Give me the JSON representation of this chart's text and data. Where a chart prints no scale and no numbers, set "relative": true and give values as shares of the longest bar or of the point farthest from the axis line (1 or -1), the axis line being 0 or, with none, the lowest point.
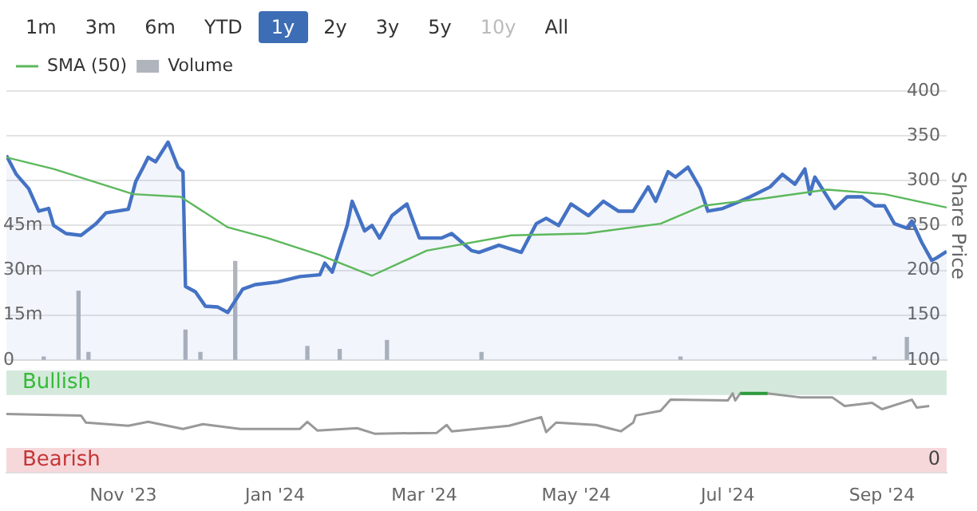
{
  "chart_data": [
    {
      "type": "area",
      "ylabel": "Share Price",
      "annotations": [
        "1m",
        "3m",
        "6m",
        "YTD",
        "1y",
        "2y",
        "3y",
        "5y",
        "10y",
        "All"
      ],
      "xlim": [
        "2023-09-15",
        "2024-09-27"
      ],
      "ylim": [
        100,
        400
      ],
      "yticks": [
        100,
        150,
        200,
        250,
        300,
        350,
        400
      ],
      "y2lim": [
        0,
        90
      ],
      "y2ticks": [
        0,
        {
          "value": 15,
          "label": "15m"
        },
        {
          "value": 30,
          "label": "30m"
        },
        {
          "value": 45,
          "label": "45m"
        }
      ],
      "grid": "y",
      "legend": "top left",
      "tick_labels": "y",
      "series": [
        {
          "color": "#4472c4",
          "x": [
            "2023-09-15",
            "2023-09-19",
            "2023-09-24",
            "2023-09-28",
            "2023-10-02",
            "2023-10-04",
            "2023-10-09",
            "2023-10-15",
            "2023-10-21",
            "2023-10-25",
            "2023-11-03",
            "2023-11-06",
            "2023-11-09",
            "2023-11-11",
            "2023-11-14",
            "2023-11-19",
            "2023-11-23",
            "2023-11-25",
            "2023-11-26",
            "2023-11-30",
            "2023-12-04",
            "2023-12-09",
            "2023-12-13",
            "2023-12-19",
            "2023-12-24",
            "2024-01-02",
            "2024-01-11",
            "2024-01-19",
            "2024-01-21",
            "2024-01-24",
            "2024-01-30",
            "2024-02-01",
            "2024-02-06",
            "2024-02-09",
            "2024-02-12",
            "2024-02-17",
            "2024-02-23",
            "2024-02-28",
            "2024-03-08",
            "2024-03-12",
            "2024-03-20",
            "2024-03-23",
            "2024-03-31",
            "2024-04-09",
            "2024-04-15",
            "2024-04-19",
            "2024-04-24",
            "2024-04-29",
            "2024-05-06",
            "2024-05-12",
            "2024-05-18",
            "2024-05-24",
            "2024-05-30",
            "2024-06-02",
            "2024-06-07",
            "2024-06-10",
            "2024-06-15",
            "2024-06-20",
            "2024-06-23",
            "2024-06-29",
            "2024-07-06",
            "2024-07-10",
            "2024-07-18",
            "2024-07-23",
            "2024-07-28",
            "2024-08-01",
            "2024-08-03",
            "2024-08-05",
            "2024-08-13",
            "2024-08-18",
            "2024-08-24",
            "2024-08-29",
            "2024-09-02",
            "2024-09-06",
            "2024-09-11",
            "2024-09-13",
            "2024-09-17",
            "2024-09-21",
            "2024-09-23",
            "2024-09-27"
          ],
          "values": [
            328,
            307,
            291,
            266,
            269,
            250,
            241,
            239,
            252,
            264,
            268,
            299,
            315,
            326,
            321,
            343,
            315,
            310,
            182,
            176,
            160,
            159,
            153,
            179,
            184,
            187,
            193,
            195,
            208,
            198,
            250,
            277,
            244,
            250,
            236,
            261,
            274,
            236,
            236,
            241,
            222,
            220,
            228,
            220,
            252,
            258,
            250,
            274,
            261,
            277,
            266,
            266,
            293,
            277,
            310,
            304,
            315,
            291,
            266,
            269,
            277,
            282,
            293,
            307,
            296,
            313,
            285,
            304,
            269,
            282,
            282,
            272,
            272,
            252,
            247,
            255,
            231,
            211,
            214,
            221
          ]
        },
        {
          "name": "SMA (50)",
          "type": "line",
          "color": "#5cb85c",
          "x": [
            "2023-09-15",
            "2023-10-04",
            "2023-11-05",
            "2023-11-24",
            "2023-12-13",
            "2023-12-29",
            "2024-01-19",
            "2024-02-09",
            "2024-03-02",
            "2024-04-05",
            "2024-05-05",
            "2024-06-04",
            "2024-06-21",
            "2024-07-15",
            "2024-08-10",
            "2024-09-02",
            "2024-09-27"
          ],
          "values": [
            326,
            313,
            285,
            282,
            248,
            236,
            217,
            194,
            222,
            239,
            241,
            252,
            272,
            280,
            290,
            285,
            270
          ]
        },
        {
          "name": "Volume",
          "type": "bar",
          "axis": "y2",
          "color": "#b0b4bc",
          "x": [
            "2023-09-30",
            "2023-10-14",
            "2023-10-18",
            "2023-11-26",
            "2023-12-02",
            "2023-12-16",
            "2024-01-14",
            "2024-01-27",
            "2024-02-15",
            "2024-03-24",
            "2024-06-12",
            "2024-08-29",
            "2024-09-11"
          ],
          "values": [
            1,
            23,
            2.5,
            10,
            2.5,
            33,
            4.5,
            3.5,
            6.5,
            2.5,
            1,
            1,
            7.5
          ]
        }
      ]
    },
    {
      "type": "line",
      "relative": true,
      "annotations": [
        "0"
      ],
      "x": [
        "2023-09-15",
        "2023-10-15",
        "2023-10-17",
        "2023-11-03",
        "2023-11-11",
        "2023-11-25",
        "2023-12-03",
        "2023-12-18",
        "2024-01-11",
        "2024-01-14",
        "2024-01-18",
        "2024-02-03",
        "2024-02-10",
        "2024-03-06",
        "2024-03-10",
        "2024-03-12",
        "2024-04-04",
        "2024-04-17",
        "2024-04-19",
        "2024-04-23",
        "2024-05-09",
        "2024-05-19",
        "2024-05-24",
        "2024-05-25",
        "2024-06-04",
        "2024-06-08",
        "2024-07-01",
        "2024-07-03",
        "2024-07-04",
        "2024-07-06",
        "2024-07-17",
        "2024-07-30",
        "2024-08-12",
        "2024-08-17",
        "2024-08-28",
        "2024-09-01",
        "2024-09-13",
        "2024-09-15",
        "2024-09-20"
      ],
      "xlim": [
        "2023-09-15",
        "2024-09-27"
      ],
      "xticks": [
        {
          "value": "2023-11-01",
          "label": "Nov '23"
        },
        {
          "value": "2024-01-01",
          "label": "Jan '24"
        },
        {
          "value": "2024-03-01",
          "label": "Mar '24"
        },
        {
          "value": "2024-05-01",
          "label": "May '24"
        },
        {
          "value": "2024-07-01",
          "label": "Jul '24"
        },
        {
          "value": "2024-09-01",
          "label": "Sep '24"
        }
      ],
      "tick_labels": "x",
      "bands": [
        {
          "axis": "y",
          "from": 0.98,
          "to": 1.29,
          "label": "Bullish",
          "color": "#d4e9dc"
        },
        {
          "axis": "y",
          "from": 0,
          "to": 0.31,
          "label": "Bearish",
          "color": "#f6d8db"
        }
      ],
      "series": [
        {
          "color": "#999999",
          "values": [
            0.74,
            0.72,
            0.63,
            0.59,
            0.64,
            0.55,
            0.61,
            0.55,
            0.55,
            0.64,
            0.53,
            0.56,
            0.49,
            0.5,
            0.6,
            0.52,
            0.59,
            0.7,
            0.51,
            0.63,
            0.6,
            0.52,
            0.63,
            0.72,
            0.78,
            0.92,
            0.91,
            1,
            0.91,
            1,
            1,
            0.95,
            0.95,
            0.84,
            0.88,
            0.8,
            0.92,
            0.82,
            0.84
          ]
        },
        {
          "color": "#2e9a3e",
          "values": [
            null,
            null,
            null,
            null,
            null,
            null,
            null,
            null,
            null,
            null,
            null,
            null,
            null,
            null,
            null,
            null,
            null,
            null,
            null,
            null,
            null,
            null,
            null,
            null,
            null,
            null,
            null,
            null,
            null,
            1,
            1,
            null,
            null,
            null,
            null,
            null,
            null,
            null,
            null
          ]
        }
      ]
    }
  ]
}
